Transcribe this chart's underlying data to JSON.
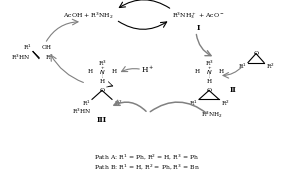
{
  "figw": 2.94,
  "figh": 1.89,
  "dpi": 100,
  "top_right_text": "R$^3$NH$_3^+$ + AcO$^-$",
  "top_left_text": "AcOH + R$^3$NH$_2$",
  "label_I": "I",
  "label_II": "II",
  "label_III": "III",
  "Hplus": "H$^+$",
  "R3NH2": "R$^3$NH$_2$",
  "path_a": "Path A: R$^1$ = Ph, R$^2$ = H, R$^3$ = Ph",
  "path_b": "Path B: R$^1$ = H, R$^2$ = Ph, R$^3$ = Bn"
}
